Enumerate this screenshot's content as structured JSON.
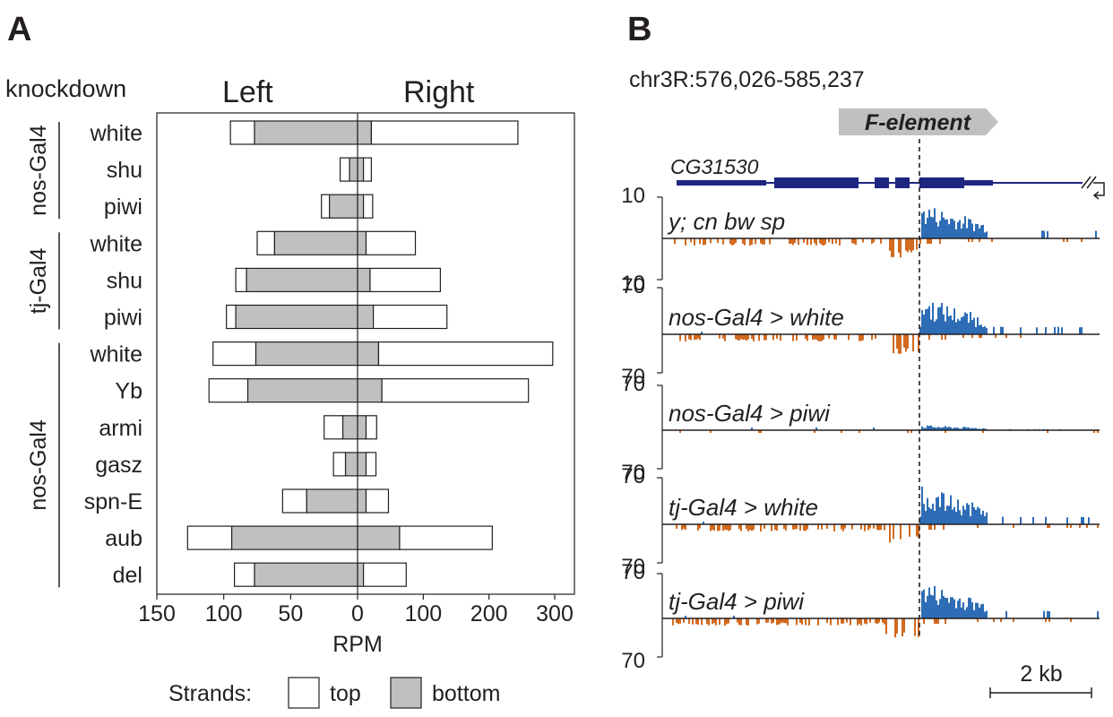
{
  "panels": {
    "a": "A",
    "b": "B"
  },
  "chart_data": [
    {
      "type": "bar",
      "group_header": "knockdown",
      "side_labels": {
        "left": "Left",
        "right": "Right"
      },
      "xlabel": "RPM",
      "left_ticks": [
        "150",
        "100",
        "50"
      ],
      "center_tick": "0",
      "right_ticks": [
        "100",
        "200",
        "300"
      ],
      "xlim_left": [
        0,
        150
      ],
      "xlim_right": [
        0,
        330
      ],
      "legend": {
        "prefix": "Strands:",
        "top": "top",
        "bottom": "bottom"
      },
      "colors": {
        "top": "#ffffff",
        "bottom": "#c0c0c2",
        "outline": "#231f20"
      },
      "groups": [
        {
          "name": "nos-Gal4",
          "rows": [
            0,
            2
          ]
        },
        {
          "name": "tj-Gal4",
          "rows": [
            3,
            5
          ]
        },
        {
          "name": "nos-Gal4",
          "rows": [
            6,
            12
          ]
        }
      ],
      "rows": [
        {
          "label": "white",
          "left_total": 95,
          "left_bottom": 77,
          "right_total": 244,
          "right_bottom": 21
        },
        {
          "label": "shu",
          "left_total": 13,
          "left_bottom": 6,
          "right_total": 21,
          "right_bottom": 9
        },
        {
          "label": "piwi",
          "left_total": 27,
          "left_bottom": 21,
          "right_total": 23,
          "right_bottom": 9
        },
        {
          "label": "white",
          "left_total": 75,
          "left_bottom": 62,
          "right_total": 88,
          "right_bottom": 13
        },
        {
          "label": "shu",
          "left_total": 91,
          "left_bottom": 83,
          "right_total": 126,
          "right_bottom": 19
        },
        {
          "label": "piwi",
          "left_total": 98,
          "left_bottom": 91,
          "right_total": 136,
          "right_bottom": 24
        },
        {
          "label": "white",
          "left_total": 108,
          "left_bottom": 76,
          "right_total": 297,
          "right_bottom": 32
        },
        {
          "label": "Yb",
          "left_total": 111,
          "left_bottom": 82,
          "right_total": 260,
          "right_bottom": 37
        },
        {
          "label": "armi",
          "left_total": 25,
          "left_bottom": 11,
          "right_total": 29,
          "right_bottom": 13
        },
        {
          "label": "gasz",
          "left_total": 18,
          "left_bottom": 9,
          "right_total": 28,
          "right_bottom": 13
        },
        {
          "label": "spn-E",
          "left_total": 56,
          "left_bottom": 38,
          "right_total": 47,
          "right_bottom": 13
        },
        {
          "label": "aub",
          "left_total": 127,
          "left_bottom": 94,
          "right_total": 205,
          "right_bottom": 64
        },
        {
          "label": "del",
          "left_total": 92,
          "left_bottom": 77,
          "right_total": 74,
          "right_bottom": 9
        }
      ]
    },
    {
      "type": "area",
      "locus": "chr3R:576,026-585,237",
      "element_label": "F-element",
      "gene_label": "CG31530",
      "scale_bar": "2 kb",
      "colors": {
        "plus": "#2e6db5",
        "minus": "#d26a1f",
        "gene": "#1f2680",
        "element": "#c0c0c2"
      },
      "tracks": [
        {
          "name": "y; cn bw sp",
          "ymax": "10",
          "ymin": "10"
        },
        {
          "name": "nos-Gal4 > white",
          "ymax": "70",
          "ymin": "70"
        },
        {
          "name": "nos-Gal4 > piwi",
          "ymax": "70",
          "ymin": "70"
        },
        {
          "name": "tj-Gal4 > white",
          "ymax": "70",
          "ymin": "70"
        },
        {
          "name": "tj-Gal4 > piwi",
          "ymax": "70",
          "ymin": "70"
        }
      ]
    }
  ]
}
